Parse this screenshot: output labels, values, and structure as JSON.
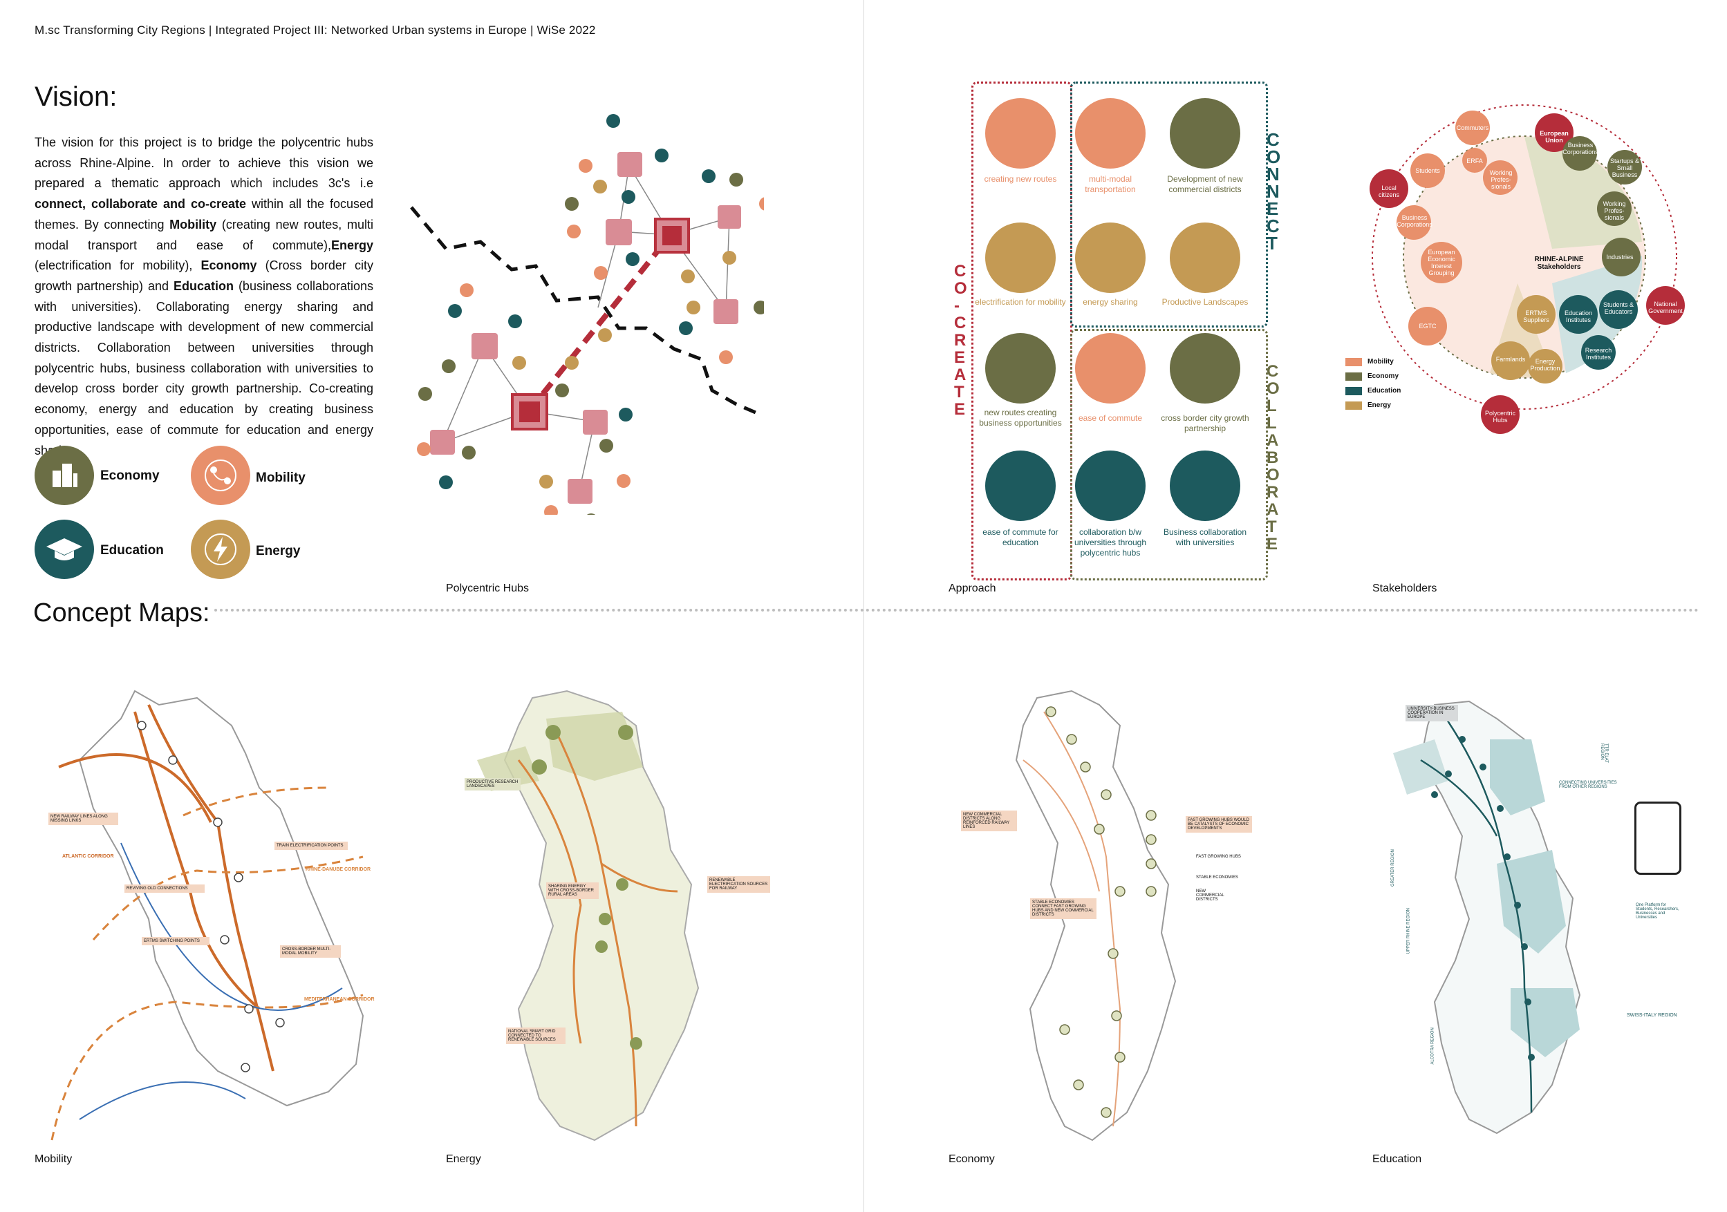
{
  "header": "M.sc Transforming City Regions  |  Integrated Project III: Networked Urban systems in Europe  | WiSe 2022",
  "vision": {
    "title": "Vision:",
    "p1": "The vision for this project is to bridge the polycentric hubs across Rhine-Alpine. In order to achieve this vision we prepared a thematic approach which includes 3c's i.e ",
    "b1": "connect, collaborate and co-create",
    "p2": " within all the focused themes. By connecting ",
    "b2": "Mobility",
    "p3": " (creating new routes, multi modal transport and ease of commute),",
    "b3": "Energy",
    "p4": " (electrification for mobility), ",
    "b4": "Economy",
    "p5": " (Cross border city growth partnership) and ",
    "b5": "Education",
    "p6": " (business collaborations with universities). Collaborating energy sharing and productive landscape with development of new commercial districts. Collaboration between universities through polycentric hubs, business collaboration with universities to develop cross border city growth partnership. Co-creating economy, energy and education by creating business opportunities, ease of commute for education and energy sharing."
  },
  "legend": {
    "economy": "Economy",
    "mobility": "Mobility",
    "education": "Education",
    "energy": "Energy"
  },
  "captions": {
    "polycentric": "Polycentric Hubs",
    "approach": "Approach",
    "stakeholders": "Stakeholders",
    "mobility": "Mobility",
    "energy": "Energy",
    "economy": "Economy",
    "education": "Education"
  },
  "concept_title": "Concept Maps:",
  "approach": {
    "connect": "CONNECT",
    "cocreate": "CO-CREATE",
    "collaborate": "COLLABORATE",
    "items": [
      "creating new routes",
      "multi-modal transportation",
      "Development of new commercial districts",
      "electrification for mobility",
      "energy sharing",
      "Productive Landscapes",
      "new routes creating business opportunities",
      "ease of commute",
      "cross border city growth partnership",
      "ease of commute for education",
      "collaboration b/w universities through polycentric hubs",
      "Business collaboration with universities"
    ]
  },
  "stakeholders": {
    "outer": [
      "European Union",
      "Local citizens",
      "National Government",
      "Polycentric Hubs"
    ],
    "inner": [
      "Commuters",
      "Students",
      "ERFA",
      "Working Profes-sionals",
      "Business Corporations",
      "European Economic Interest Grouping",
      "EGTC",
      "Business Corporations",
      "Startups & Small Business",
      "Working Profes-sionals",
      "Industries",
      "ERTMS Suppliers",
      "Education Institutes",
      "Students & Educators",
      "Farmlands",
      "Energy Production",
      "Research Institutes"
    ],
    "center": "RHINE-ALPINE Stakeholders",
    "legend": [
      "Mobility",
      "Economy",
      "Education",
      "Energy"
    ]
  },
  "maps": {
    "mobility": [
      "NEW RAILWAY LINES ALONG MISSING LINKS",
      "ATLANTIC CORRIDOR",
      "TRAIN ELECTRIFICATION POINTS",
      "RHINE-DANUBE CORRIDOR",
      "REVIVING OLD CONNECTIONS",
      "ERTMS SWITCHING POINTS",
      "CROSS-BORDER MULTI-MODAL MOBILITY",
      "MEDITERRANEAN CORRIDOR"
    ],
    "energy": [
      "PRODUCTIVE RESEARCH LANDSCAPES",
      "SHARING ENERGY WITH CROSS-BORDER RURAL AREAS",
      "RENEWABLE ELECTRIFICATION SOURCES FOR RAILWAY",
      "NATIONAL SMART GRID CONNECTED TO RENEWABLE SOURCES"
    ],
    "economy": [
      "NEW COMMERCIAL DISTRICTS ALONG REINFORCED RAILWAY LINES",
      "FAST GROWING HUBS WOULD BE CATALYSTS OF ECONOMIC DEVELOPMENTS",
      "FAST GROWING HUBS",
      "STABLE ECONOMIES",
      "NEW COMMERCIAL DISTRICTS",
      "STABLE ECONOMIES CONNECT FAST GROWING HUBS AND NEW COMMERCIAL DISTRICTS"
    ],
    "education": [
      "UNIVERSITY-BUSINESS COOPERATION IN EUROPE",
      "TTR ELAT REGION",
      "CONNECTING UNIVERSITIES FROM OTHER REGIONS",
      "GREATER REGION",
      "UPPER RHINE REGION",
      "ALCOTRA REGION",
      "SWISS-ITALY REGION",
      "One Platform for Students, Researchers, Businesses and Universities"
    ]
  },
  "colors": {
    "mobility": "#e8906b",
    "economy": "#6b6e45",
    "education": "#1d5a5e",
    "energy": "#c49a54",
    "hub": "#d98c95",
    "hubframe": "#b8323e",
    "red": "#b52d3a"
  }
}
